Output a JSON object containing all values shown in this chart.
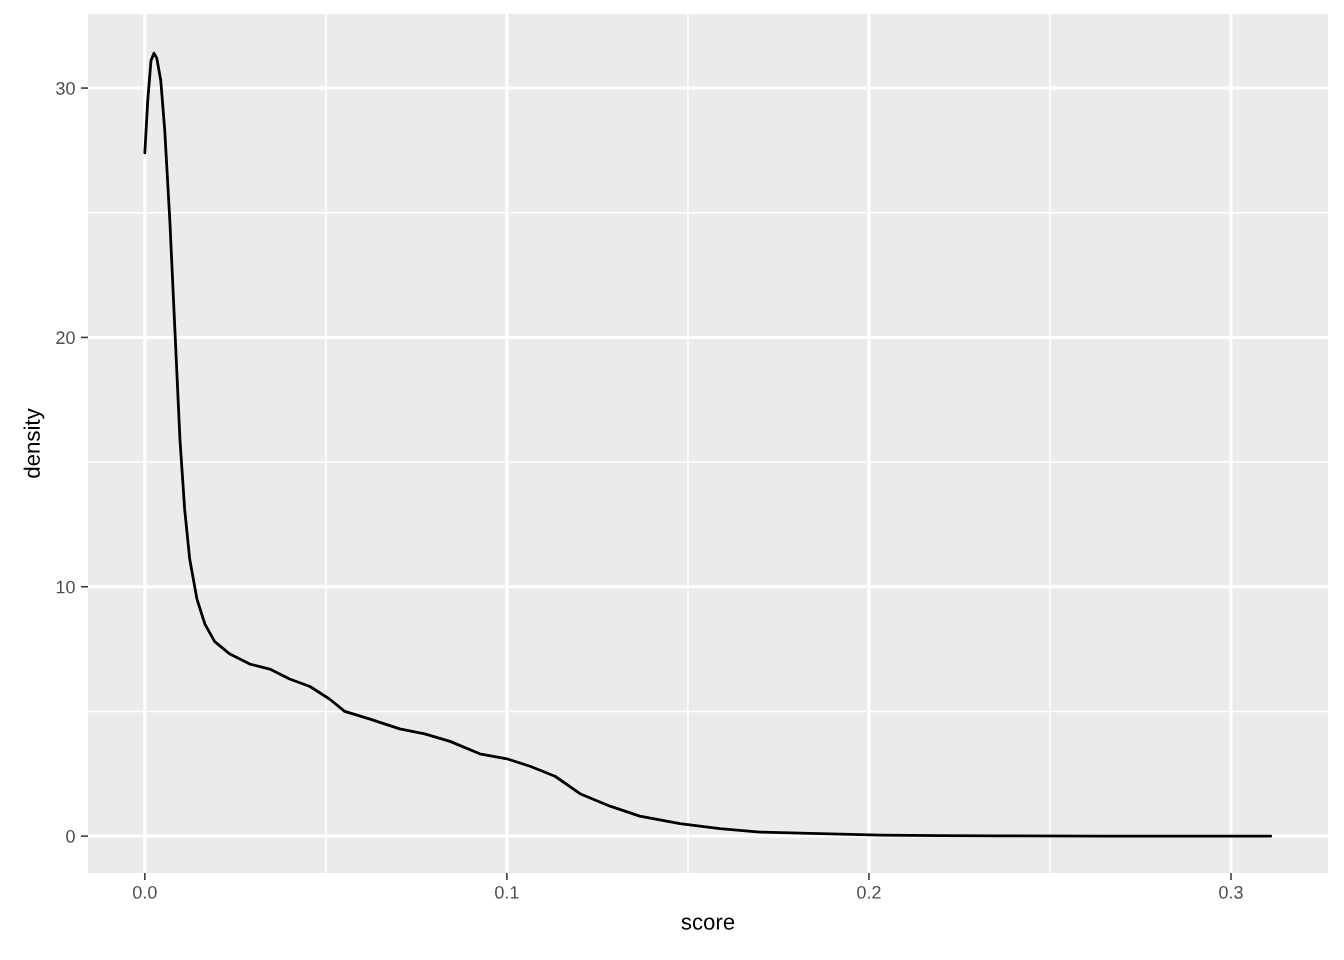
{
  "chart_data": {
    "type": "line",
    "xlabel": "score",
    "ylabel": "density",
    "x": [
      0,
      0.0008,
      0.0017,
      0.0025,
      0.0033,
      0.0044,
      0.0055,
      0.0069,
      0.0083,
      0.0097,
      0.011,
      0.0124,
      0.0144,
      0.0166,
      0.0193,
      0.0235,
      0.029,
      0.0345,
      0.04,
      0.0456,
      0.051,
      0.0552,
      0.062,
      0.0704,
      0.0773,
      0.0843,
      0.0925,
      0.1,
      0.1064,
      0.1133,
      0.1202,
      0.1285,
      0.1367,
      0.1478,
      0.1588,
      0.1699,
      0.181,
      0.192,
      0.203,
      0.22,
      0.236,
      0.264,
      0.311
    ],
    "series": [
      {
        "color": "#000000",
        "values": [
          27.4,
          29.5,
          31.1,
          31.4,
          31.2,
          30.3,
          28.3,
          24.7,
          20.3,
          15.9,
          13.1,
          11.1,
          9.5,
          8.5,
          7.8,
          7.3,
          6.9,
          6.7,
          6.3,
          6.0,
          5.5,
          5.0,
          4.7,
          4.3,
          4.1,
          3.8,
          3.3,
          3.1,
          2.8,
          2.4,
          1.7,
          1.2,
          0.8,
          0.5,
          0.3,
          0.16,
          0.12,
          0.08,
          0.04,
          0.02,
          0.01,
          0,
          0
        ]
      }
    ],
    "xlim": [
      -0.0157,
      0.3268
    ],
    "ylim": [
      -1.48,
      32.97
    ],
    "xticks": [
      {
        "value": 0,
        "label": "0.0"
      },
      {
        "value": 0.1,
        "label": "0.1"
      },
      {
        "value": 0.2,
        "label": "0.2"
      },
      {
        "value": 0.3,
        "label": "0.3"
      }
    ],
    "yticks": [
      0,
      10,
      20,
      30
    ],
    "grid": true,
    "marker": "none",
    "line_style": "solid"
  }
}
